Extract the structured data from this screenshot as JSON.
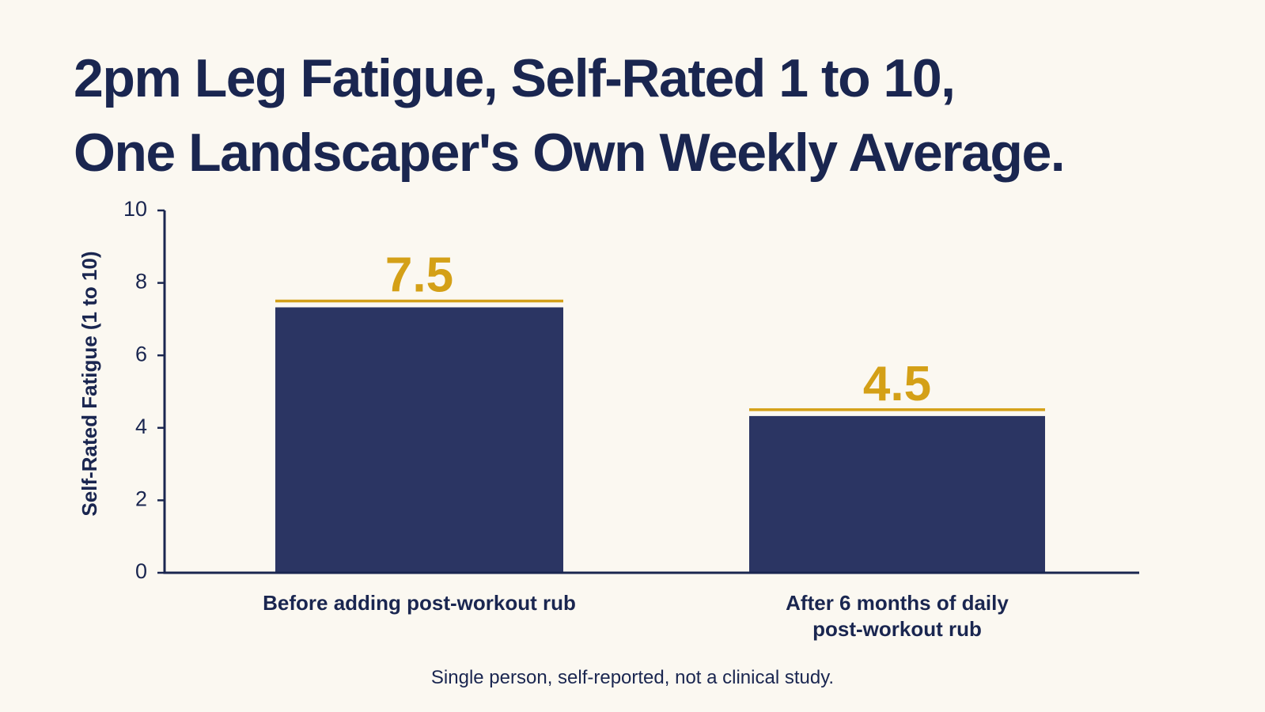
{
  "chart_data": {
    "type": "bar",
    "title_lines": [
      "2pm Leg Fatigue, Self-Rated 1 to 10,",
      "One Landscaper's Own Weekly Average."
    ],
    "categories": [
      [
        "Before adding post-workout rub"
      ],
      [
        "After 6 months of daily",
        "post-workout rub"
      ]
    ],
    "values": [
      7.5,
      4.5
    ],
    "value_labels": [
      "7.5",
      "4.5"
    ],
    "ylabel": "Self-Rated Fatigue (1 to 10)",
    "ylim": [
      0,
      10
    ],
    "yticks": [
      0,
      2,
      4,
      6,
      8,
      10
    ],
    "grid": false,
    "legend": "none",
    "footnote": "Single person, self-reported, not a clinical study.",
    "colors": {
      "background": "#fbf8f1",
      "bar": "#2b3563",
      "accent": "#d4a017",
      "axis": "#1a2650",
      "text": "#1a2650"
    }
  }
}
